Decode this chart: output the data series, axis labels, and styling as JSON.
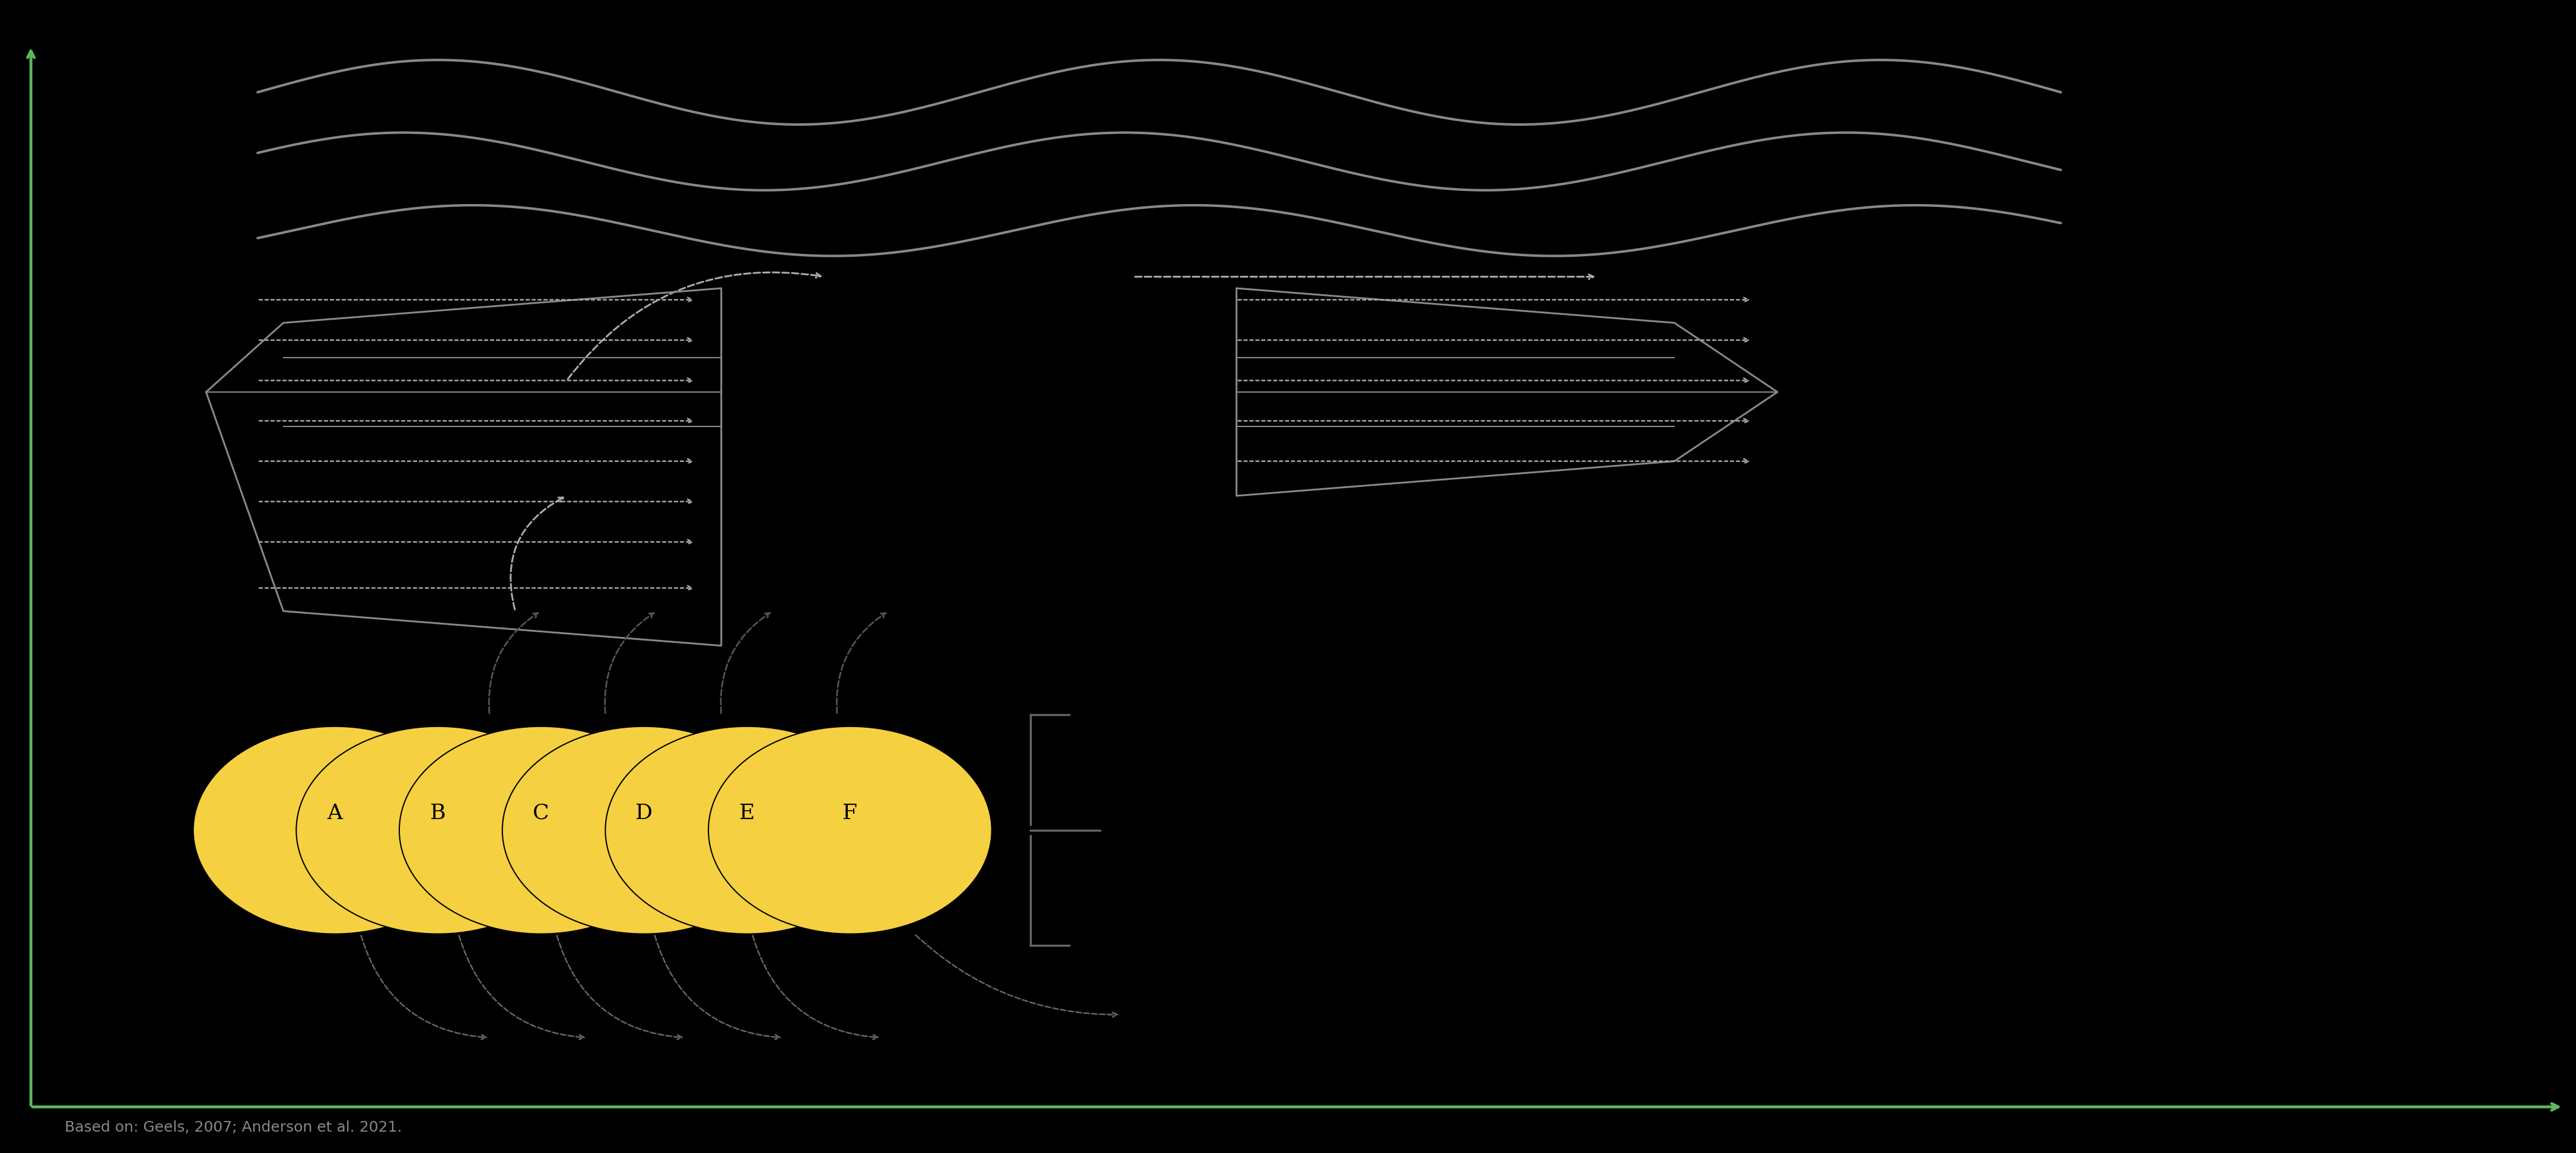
{
  "bg_color": "#000000",
  "axis_color": "#5cb85c",
  "caption": "Based on: Geels, 2007; Anderson et al. 2021.",
  "caption_color": "#888888",
  "caption_fontsize": 18,
  "wave_color": "#888888",
  "regime_color": "#888888",
  "niche_fill": "#f5d040",
  "niche_labels": [
    "A",
    "B",
    "C",
    "D",
    "E",
    "F"
  ],
  "arrow_color": "#aaaaaa",
  "dark_arrow_color": "#555555",
  "bracket_color": "#666666",
  "figure_width": 43.42,
  "figure_height": 19.44
}
